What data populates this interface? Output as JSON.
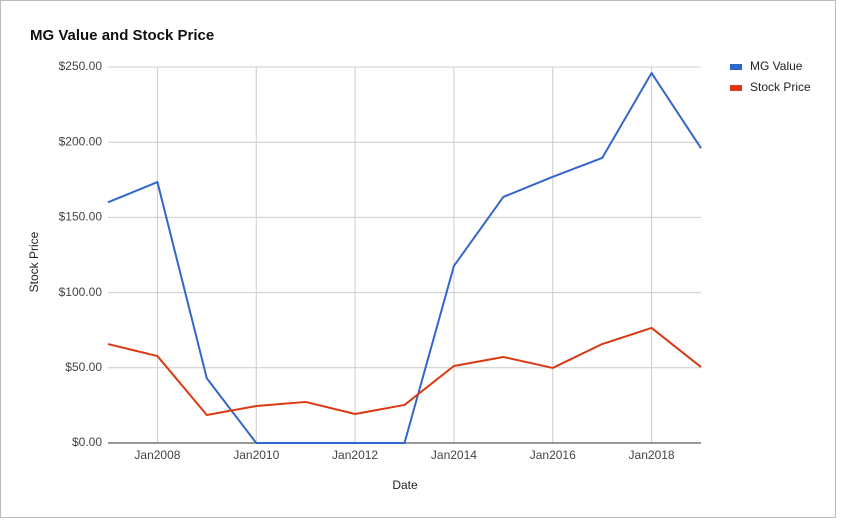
{
  "chart_data": {
    "type": "line",
    "title": "MG Value and Stock Price",
    "x_label": "Date",
    "y_label": "Stock Price",
    "x": [
      "2007-01",
      "2008-01",
      "2009-01",
      "2010-01",
      "2011-01",
      "2012-01",
      "2013-01",
      "2014-01",
      "2015-01",
      "2016-01",
      "2017-01",
      "2018-01",
      "2019-01"
    ],
    "xlim": [
      "2007-01",
      "2019-01"
    ],
    "xticks": [
      {
        "value": "2008-01",
        "label": "Jan2008"
      },
      {
        "value": "2010-01",
        "label": "Jan2010"
      },
      {
        "value": "2012-01",
        "label": "Jan2012"
      },
      {
        "value": "2014-01",
        "label": "Jan2014"
      },
      {
        "value": "2016-01",
        "label": "Jan2016"
      },
      {
        "value": "2018-01",
        "label": "Jan2018"
      }
    ],
    "ylim": [
      0,
      250
    ],
    "yticks": [
      {
        "value": 0,
        "label": "$0.00"
      },
      {
        "value": 50,
        "label": "$50.00"
      },
      {
        "value": 100,
        "label": "$100.00"
      },
      {
        "value": 150,
        "label": "$150.00"
      },
      {
        "value": 200,
        "label": "$200.00"
      },
      {
        "value": 250,
        "label": "$250.00"
      }
    ],
    "grid": true,
    "legend": "right",
    "series": [
      {
        "name": "MG Value",
        "color": "#3366cc",
        "values": [
          160,
          173.5,
          43,
          0,
          0,
          0,
          0,
          117.7,
          163.6,
          177,
          189.5,
          246,
          196
        ]
      },
      {
        "name": "Stock Price",
        "color": "#dc3912",
        "values": [
          65.8,
          57.8,
          18.6,
          24.6,
          27.3,
          19.3,
          25.3,
          51.2,
          57.2,
          49.9,
          65.8,
          76.5,
          50.5
        ]
      }
    ]
  }
}
